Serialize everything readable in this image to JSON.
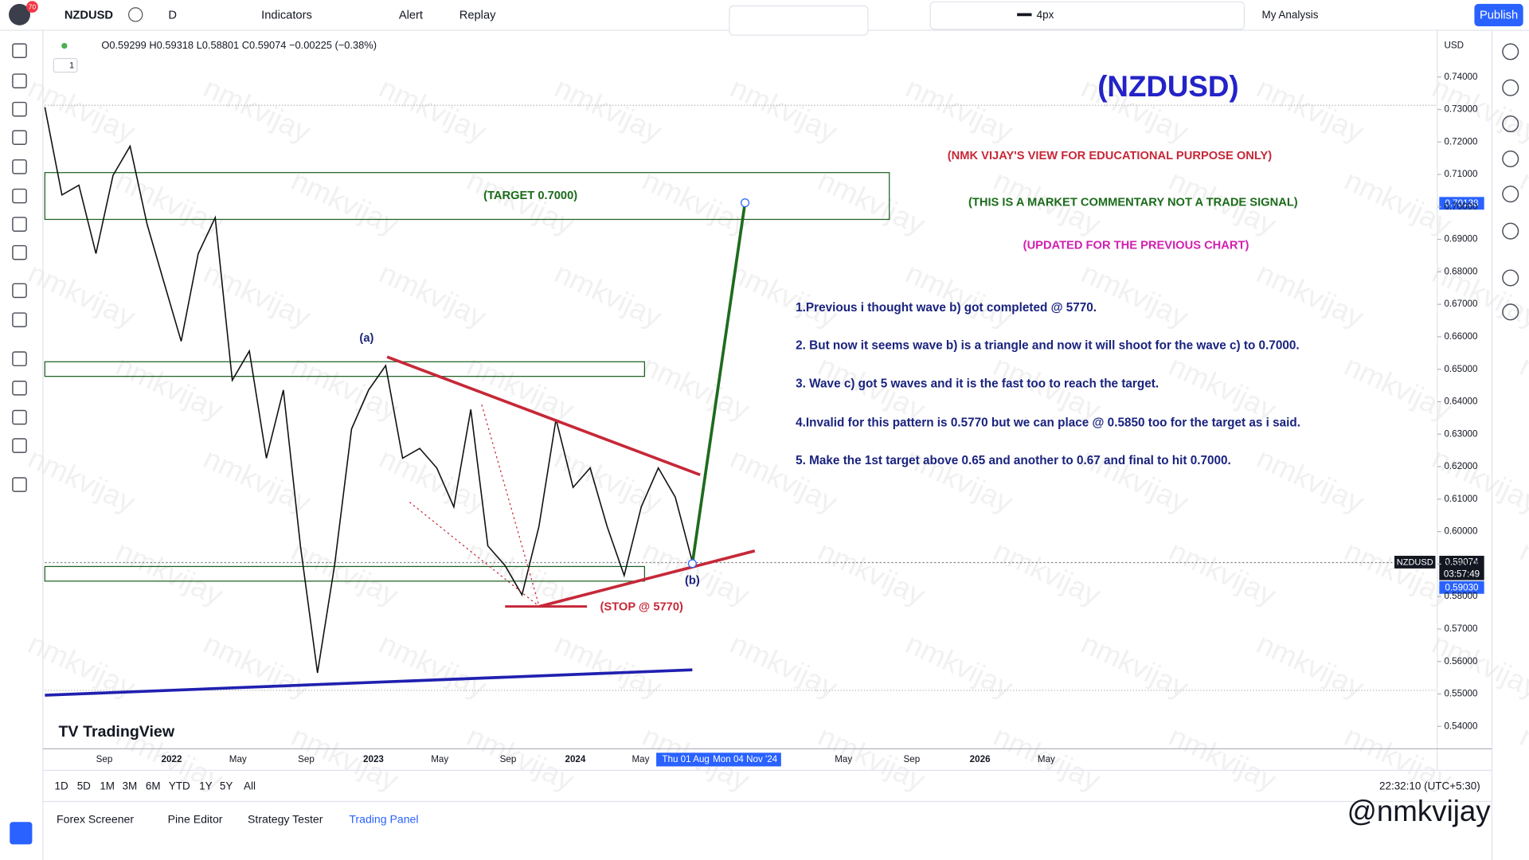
{
  "toolbar": {
    "notifications": "70",
    "symbol": "NZDUSD",
    "interval": "D",
    "indicators": "Indicators",
    "alert": "Alert",
    "replay": "Replay",
    "brush_size": "4px",
    "layout": "My Analysis",
    "publish": "Publish"
  },
  "legend": {
    "ohlc": "O0.59299 H0.59318 L0.58801 C0.59074 −0.00225 (−0.38%)",
    "count": "1"
  },
  "chart_data": {
    "type": "line",
    "name": "NZDUSD",
    "color": "#111111",
    "values": [
      0.7307,
      0.7037,
      0.7067,
      0.6856,
      0.7097,
      0.7187,
      0.6947,
      0.6766,
      0.6586,
      0.6856,
      0.6967,
      0.6466,
      0.6556,
      0.6226,
      0.6436,
      0.5956,
      0.5565,
      0.5896,
      0.6316,
      0.6436,
      0.6511,
      0.6226,
      0.6256,
      0.6196,
      0.6076,
      0.6376,
      0.5956,
      0.5896,
      0.5805,
      0.6016,
      0.6346,
      0.6136,
      0.6196,
      0.6016,
      0.5865,
      0.6076,
      0.6196,
      0.6106,
      0.5907
    ],
    "ylim": [
      0.5331,
      0.7523
    ],
    "yticks": [
      {
        "value": 0.54,
        "label": "0.54000"
      },
      {
        "value": 0.55,
        "label": "0.55000"
      },
      {
        "value": 0.56,
        "label": "0.56000"
      },
      {
        "value": 0.57,
        "label": "0.57000"
      },
      {
        "value": 0.58,
        "label": "0.58000"
      },
      {
        "value": 0.59,
        "label": "0.59000"
      },
      {
        "value": 0.6,
        "label": "0.60000"
      },
      {
        "value": 0.61,
        "label": "0.61000"
      },
      {
        "value": 0.62,
        "label": "0.62000"
      },
      {
        "value": 0.63,
        "label": "0.63000"
      },
      {
        "value": 0.64,
        "label": "0.64000"
      },
      {
        "value": 0.65,
        "label": "0.65000"
      },
      {
        "value": 0.66,
        "label": "0.66000"
      },
      {
        "value": 0.67,
        "label": "0.67000"
      },
      {
        "value": 0.68,
        "label": "0.68000"
      },
      {
        "value": 0.69,
        "label": "0.69000"
      },
      {
        "value": 0.7,
        "label": "0.70000"
      },
      {
        "value": 0.71,
        "label": "0.71000"
      },
      {
        "value": 0.72,
        "label": "0.72000"
      },
      {
        "value": 0.73,
        "label": "0.73000"
      },
      {
        "value": 0.74,
        "label": "0.74000"
      }
    ],
    "time_labels": [
      "Sep",
      "2022",
      "May",
      "Sep",
      "2023",
      "May",
      "Sep",
      "2024",
      "May",
      "May",
      "Sep",
      "2026",
      "May"
    ],
    "currency": "USD",
    "target_tag": "0.70138",
    "price_tag": "0.59074",
    "countdown": "03:57:49",
    "low_tag": "0.59030",
    "crosshair_start": "Thu 01 Aug",
    "crosshair_end": "Mon 04 Nov '24"
  },
  "annotations": {
    "title": "(NZDUSD)",
    "disclaimer": "(NMK VIJAY'S VIEW FOR EDUCATIONAL PURPOSE ONLY)",
    "commentary": "(THIS IS A MARKET COMMENTARY NOT A TRADE SIGNAL)",
    "updated": "(UPDATED FOR  THE PREVIOUS CHART)",
    "points": [
      "1.Previous i thought wave b) got completed @ 5770.",
      "2. But now it seems wave b) is a triangle and now it will shoot for the wave c) to 0.7000.",
      "3. Wave c) got 5 waves and it is the fast too to reach the target.",
      "4.Invalid for this pattern is 0.5770 but we can place @ 0.5850 too for the target as i said.",
      "5. Make the 1st target above 0.65 and another to 0.67 and final to hit 0.7000."
    ],
    "target": "(TARGET 0.7000)",
    "wave_a": "(a)",
    "wave_b": "(b)",
    "stop": "(STOP @ 5770)",
    "watermark": "nmkvijay",
    "handle": "@nmkvijay",
    "brand": "TradingView"
  },
  "bottom": {
    "ranges": [
      "1D",
      "5D",
      "1M",
      "3M",
      "6M",
      "YTD",
      "1Y",
      "5Y",
      "All"
    ],
    "clock": "22:32:10 (UTC+5:30)",
    "tabs": [
      "Forex Screener",
      "Pine Editor",
      "Strategy Tester",
      "Trading Panel"
    ]
  }
}
